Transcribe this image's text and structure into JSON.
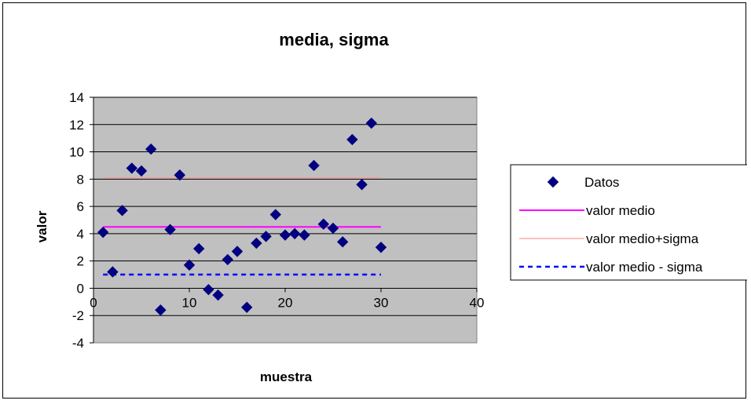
{
  "chart_data": {
    "type": "scatter",
    "title": "media, sigma",
    "xlabel": "muestra",
    "ylabel": "valor",
    "xlim": [
      0,
      40
    ],
    "ylim": [
      -4,
      14
    ],
    "xticks": [
      0,
      10,
      20,
      30,
      40
    ],
    "yticks": [
      -4,
      -2,
      0,
      2,
      4,
      6,
      8,
      10,
      12,
      14
    ],
    "grid": "horizontal",
    "plot_background": "#c0c0c0",
    "legend_position": "right",
    "series": [
      {
        "name": "Datos",
        "kind": "scatter",
        "marker": "diamond",
        "color": "#000080",
        "x": [
          1,
          2,
          3,
          4,
          5,
          6,
          7,
          8,
          9,
          10,
          11,
          12,
          13,
          14,
          15,
          16,
          17,
          18,
          19,
          20,
          21,
          22,
          23,
          24,
          25,
          26,
          27,
          28,
          29,
          30
        ],
        "y": [
          4.1,
          1.2,
          5.7,
          8.8,
          8.6,
          10.2,
          -1.6,
          4.3,
          8.3,
          1.7,
          2.9,
          -0.1,
          -0.5,
          2.1,
          2.7,
          -1.4,
          3.3,
          3.8,
          5.4,
          3.9,
          4.0,
          3.9,
          9.0,
          4.7,
          4.4,
          3.4,
          10.9,
          7.6,
          12.1,
          3.0
        ]
      },
      {
        "name": "valor medio",
        "kind": "line",
        "style": "solid",
        "color": "#ff00ff",
        "x": [
          1,
          30
        ],
        "y": [
          4.5,
          4.5
        ]
      },
      {
        "name": "valor medio+sigma",
        "kind": "line",
        "style": "solid",
        "color": "#ff9999",
        "x": [
          1,
          30
        ],
        "y": [
          8.1,
          8.1
        ]
      },
      {
        "name": "valor medio - sigma",
        "kind": "line",
        "style": "dashed",
        "color": "#0000ff",
        "x": [
          1,
          30
        ],
        "y": [
          1.0,
          1.0
        ]
      }
    ]
  }
}
